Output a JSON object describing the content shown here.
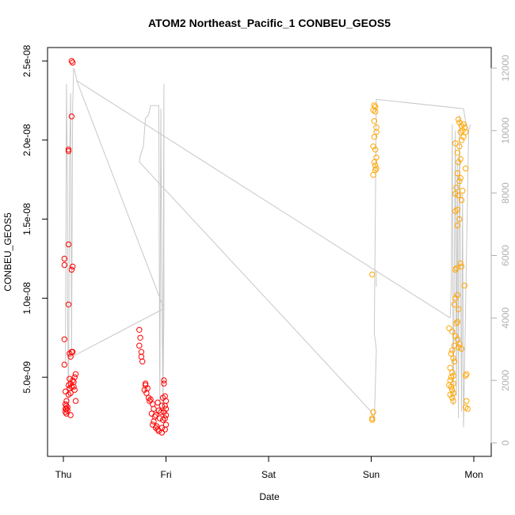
{
  "chart_data": {
    "type": "scatter",
    "title": "ATOM2 Northeast_Pacific_1 CONBEU_GEOS5",
    "xlabel": "Date",
    "ylabel": "CONBEU_GEOS5",
    "x_ticks": [
      "Thu",
      "Fri",
      "Sat",
      "Sun",
      "Mon"
    ],
    "x_range_days": [
      0,
      4
    ],
    "ylim": [
      1.5e-09,
      2.5e-08
    ],
    "y_ticks": [
      {
        "value": 5e-09,
        "label": "5.0e-09"
      },
      {
        "value": 1e-08,
        "label": "1.0e-08"
      },
      {
        "value": 1.5e-08,
        "label": "1.5e-08"
      },
      {
        "value": 2e-08,
        "label": "2.0e-08"
      },
      {
        "value": 2.5e-08,
        "label": "2.5e-08"
      }
    ],
    "y2lim": [
      0,
      12000
    ],
    "y2_ticks": [
      {
        "value": 0,
        "label": "0"
      },
      {
        "value": 2000,
        "label": "2000"
      },
      {
        "value": 4000,
        "label": "4000"
      },
      {
        "value": 6000,
        "label": "6000"
      },
      {
        "value": 8000,
        "label": "8000"
      },
      {
        "value": 10000,
        "label": "10000"
      },
      {
        "value": 12000,
        "label": "12000"
      }
    ],
    "grid": false,
    "legend": "none",
    "series": [
      {
        "color": "#ff0000",
        "marker": "open-circle",
        "points": [
          [
            0.08,
            2.5e-08
          ],
          [
            0.09,
            2.49e-08
          ],
          [
            0.08,
            2.15e-08
          ],
          [
            0.05,
            1.94e-08
          ],
          [
            0.05,
            1.93e-08
          ],
          [
            0.05,
            1.34e-08
          ],
          [
            0.01,
            1.25e-08
          ],
          [
            0.01,
            1.21e-08
          ],
          [
            0.09,
            1.2e-08
          ],
          [
            0.08,
            1.18e-08
          ],
          [
            0.05,
            9.6e-09
          ],
          [
            0.01,
            7.4e-09
          ],
          [
            0.08,
            6.6e-09
          ],
          [
            0.09,
            6.6e-09
          ],
          [
            0.06,
            6.5e-09
          ],
          [
            0.07,
            6.3e-09
          ],
          [
            0.01,
            5.8e-09
          ],
          [
            0.12,
            5.2e-09
          ],
          [
            0.11,
            5e-09
          ],
          [
            0.06,
            4.9e-09
          ],
          [
            0.09,
            4.8e-09
          ],
          [
            0.1,
            4.7e-09
          ],
          [
            0.07,
            4.6e-09
          ],
          [
            0.05,
            4.5e-09
          ],
          [
            0.1,
            4.4e-09
          ],
          [
            0.08,
            4.4e-09
          ],
          [
            0.06,
            4.3e-09
          ],
          [
            0.11,
            4.2e-09
          ],
          [
            0.02,
            4.1e-09
          ],
          [
            0.07,
            4e-09
          ],
          [
            0.05,
            3.9e-09
          ],
          [
            0.03,
            3.5e-09
          ],
          [
            0.12,
            3.5e-09
          ],
          [
            0.02,
            3.3e-09
          ],
          [
            0.03,
            3.2e-09
          ],
          [
            0.04,
            3.1e-09
          ],
          [
            0.02,
            3e-09
          ],
          [
            0.03,
            3e-09
          ],
          [
            0.04,
            2.9e-09
          ],
          [
            0.02,
            2.8e-09
          ],
          [
            0.03,
            2.7e-09
          ],
          [
            0.07,
            2.6e-09
          ],
          [
            0.74,
            8e-09
          ],
          [
            0.75,
            7.5e-09
          ],
          [
            0.74,
            7e-09
          ],
          [
            0.76,
            6.6e-09
          ],
          [
            0.76,
            6.3e-09
          ],
          [
            0.77,
            6e-09
          ],
          [
            0.8,
            4.6e-09
          ],
          [
            0.8,
            4.5e-09
          ],
          [
            0.82,
            4.3e-09
          ],
          [
            0.79,
            4.2e-09
          ],
          [
            0.81,
            4e-09
          ],
          [
            0.83,
            3.7e-09
          ],
          [
            0.85,
            3.6e-09
          ],
          [
            0.84,
            3.5e-09
          ],
          [
            0.87,
            3.3e-09
          ],
          [
            0.88,
            3e-09
          ],
          [
            0.86,
            2.7e-09
          ],
          [
            0.9,
            2.6e-09
          ],
          [
            0.89,
            2.5e-09
          ],
          [
            0.88,
            2.2e-09
          ],
          [
            0.87,
            2e-09
          ],
          [
            0.91,
            1.9e-09
          ],
          [
            0.9,
            1.8e-09
          ],
          [
            0.92,
            1.7e-09
          ],
          [
            0.93,
            1.6e-09
          ],
          [
            0.96,
            1.8e-09
          ],
          [
            0.98,
            4.8e-09
          ],
          [
            0.98,
            4.6e-09
          ],
          [
            0.99,
            3.8e-09
          ],
          [
            0.97,
            3.7e-09
          ],
          [
            1.0,
            3.5e-09
          ],
          [
            0.99,
            3.2e-09
          ],
          [
            1.0,
            3e-09
          ],
          [
            0.98,
            2.8e-09
          ],
          [
            1.0,
            2.6e-09
          ],
          [
            0.99,
            2.4e-09
          ],
          [
            0.97,
            2.3e-09
          ],
          [
            1.0,
            2e-09
          ],
          [
            0.99,
            1.7e-09
          ],
          [
            0.96,
            1.5e-09
          ],
          [
            0.94,
            2.4e-09
          ],
          [
            0.95,
            2.8e-09
          ],
          [
            0.96,
            3.2e-09
          ],
          [
            0.93,
            2.9e-09
          ],
          [
            0.92,
            3.4e-09
          ]
        ]
      },
      {
        "color": "#ffa500",
        "marker": "open-circle",
        "points": [
          [
            3.03,
            2.22e-08
          ],
          [
            3.04,
            2.21e-08
          ],
          [
            3.02,
            2.19e-08
          ],
          [
            3.04,
            2.18e-08
          ],
          [
            3.03,
            2.12e-08
          ],
          [
            3.05,
            2.08e-08
          ],
          [
            3.05,
            2.05e-08
          ],
          [
            3.03,
            2.02e-08
          ],
          [
            3.02,
            1.96e-08
          ],
          [
            3.04,
            1.94e-08
          ],
          [
            3.05,
            1.89e-08
          ],
          [
            3.03,
            1.86e-08
          ],
          [
            3.04,
            1.84e-08
          ],
          [
            3.05,
            1.82e-08
          ],
          [
            3.04,
            1.81e-08
          ],
          [
            3.02,
            1.78e-08
          ],
          [
            3.01,
            1.15e-08
          ],
          [
            3.02,
            2.8e-09
          ],
          [
            3.01,
            2.4e-09
          ],
          [
            3.01,
            2.3e-09
          ],
          [
            3.85,
            2.13e-08
          ],
          [
            3.86,
            2.11e-08
          ],
          [
            3.88,
            2.09e-08
          ],
          [
            3.9,
            2.1e-08
          ],
          [
            3.91,
            2.08e-08
          ],
          [
            3.89,
            2.06e-08
          ],
          [
            3.92,
            2.05e-08
          ],
          [
            3.87,
            2.05e-08
          ],
          [
            3.9,
            2.02e-08
          ],
          [
            3.88,
            2e-08
          ],
          [
            3.82,
            1.98e-08
          ],
          [
            3.86,
            1.96e-08
          ],
          [
            3.84,
            1.92e-08
          ],
          [
            3.87,
            1.88e-08
          ],
          [
            3.85,
            1.86e-08
          ],
          [
            3.92,
            1.82e-08
          ],
          [
            3.84,
            1.79e-08
          ],
          [
            3.87,
            1.76e-08
          ],
          [
            3.86,
            1.74e-08
          ],
          [
            3.83,
            1.7e-08
          ],
          [
            3.89,
            1.68e-08
          ],
          [
            3.82,
            1.66e-08
          ],
          [
            3.85,
            1.65e-08
          ],
          [
            3.88,
            1.62e-08
          ],
          [
            3.84,
            1.56e-08
          ],
          [
            3.82,
            1.55e-08
          ],
          [
            3.86,
            1.5e-08
          ],
          [
            3.84,
            1.46e-08
          ],
          [
            3.87,
            1.22e-08
          ],
          [
            3.88,
            1.2e-08
          ],
          [
            3.83,
            1.19e-08
          ],
          [
            3.82,
            1.18e-08
          ],
          [
            3.91,
            1.08e-08
          ],
          [
            3.84,
            1.02e-08
          ],
          [
            3.82,
            1e-08
          ],
          [
            3.81,
            9.6e-09
          ],
          [
            3.85,
            9.3e-09
          ],
          [
            3.84,
            8.5e-09
          ],
          [
            3.83,
            8.4e-09
          ],
          [
            3.76,
            8.1e-09
          ],
          [
            3.79,
            7.9e-09
          ],
          [
            3.82,
            7.6e-09
          ],
          [
            3.84,
            7.4e-09
          ],
          [
            3.86,
            7.1e-09
          ],
          [
            3.81,
            7e-09
          ],
          [
            3.85,
            6.9e-09
          ],
          [
            3.88,
            6.8e-09
          ],
          [
            3.79,
            6.7e-09
          ],
          [
            3.78,
            6.5e-09
          ],
          [
            3.8,
            6.2e-09
          ],
          [
            3.81,
            6e-09
          ],
          [
            3.77,
            5.6e-09
          ],
          [
            3.79,
            5.3e-09
          ],
          [
            3.8,
            5.1e-09
          ],
          [
            3.92,
            5.1e-09
          ],
          [
            3.93,
            5.2e-09
          ],
          [
            3.78,
            5e-09
          ],
          [
            3.77,
            4.8e-09
          ],
          [
            3.8,
            4.6e-09
          ],
          [
            3.76,
            4.5e-09
          ],
          [
            3.78,
            4.4e-09
          ],
          [
            3.79,
            4.2e-09
          ],
          [
            3.8,
            4e-09
          ],
          [
            3.77,
            3.9e-09
          ],
          [
            3.79,
            3.7e-09
          ],
          [
            3.8,
            3.5e-09
          ],
          [
            3.93,
            3.5e-09
          ],
          [
            3.92,
            3.1e-09
          ],
          [
            3.94,
            3e-09
          ]
        ]
      },
      {
        "color": "#c8c8c8",
        "type": "line",
        "axis": "right",
        "points": [
          [
            0.02,
            2500
          ],
          [
            0.03,
            11500
          ],
          [
            0.04,
            8000
          ],
          [
            0.04,
            4500
          ],
          [
            0.05,
            1200
          ],
          [
            0.06,
            9000
          ],
          [
            0.07,
            11200
          ],
          [
            0.08,
            3000
          ],
          [
            0.09,
            10800
          ],
          [
            0.1,
            12000
          ],
          [
            0.12,
            11800
          ],
          [
            0.13,
            11600
          ],
          [
            0.98,
            4300
          ],
          [
            0.98,
            11500
          ],
          [
            0.97,
            1200
          ],
          [
            0.96,
            5000
          ],
          [
            0.95,
            10700
          ],
          [
            0.94,
            1000
          ],
          [
            0.93,
            10800
          ],
          [
            0.85,
            10800
          ],
          [
            0.83,
            10500
          ],
          [
            0.8,
            10400
          ],
          [
            0.78,
            9500
          ],
          [
            0.75,
            9200
          ],
          [
            0.74,
            9000
          ],
          [
            3.0,
            1000
          ],
          [
            3.03,
            700
          ],
          [
            3.05,
            3000
          ],
          [
            3.03,
            3500
          ],
          [
            3.05,
            11000
          ],
          [
            3.9,
            10700
          ],
          [
            3.92,
            10300
          ],
          [
            3.95,
            10000
          ],
          [
            3.97,
            10200
          ],
          [
            3.95,
            10000
          ],
          [
            3.9,
            500
          ],
          [
            3.89,
            8000
          ],
          [
            3.88,
            1000
          ],
          [
            3.86,
            10500
          ],
          [
            3.85,
            800
          ],
          [
            3.84,
            9000
          ],
          [
            3.83,
            1500
          ],
          [
            3.82,
            10000
          ],
          [
            3.8,
            1200
          ],
          [
            3.79,
            10200
          ],
          [
            3.78,
            5000
          ],
          [
            3.77,
            4000
          ]
        ]
      }
    ],
    "overview_path": [
      [
        0.05,
        2700
      ],
      [
        0.98,
        4300
      ],
      [
        0.97,
        1200
      ]
    ],
    "connector_path": [
      [
        0.13,
        11600
      ],
      [
        3.05,
        5500
      ],
      [
        3.05,
        5000
      ]
    ],
    "tail_path": [
      [
        3.77,
        4000
      ],
      [
        3.05,
        5500
      ]
    ]
  }
}
